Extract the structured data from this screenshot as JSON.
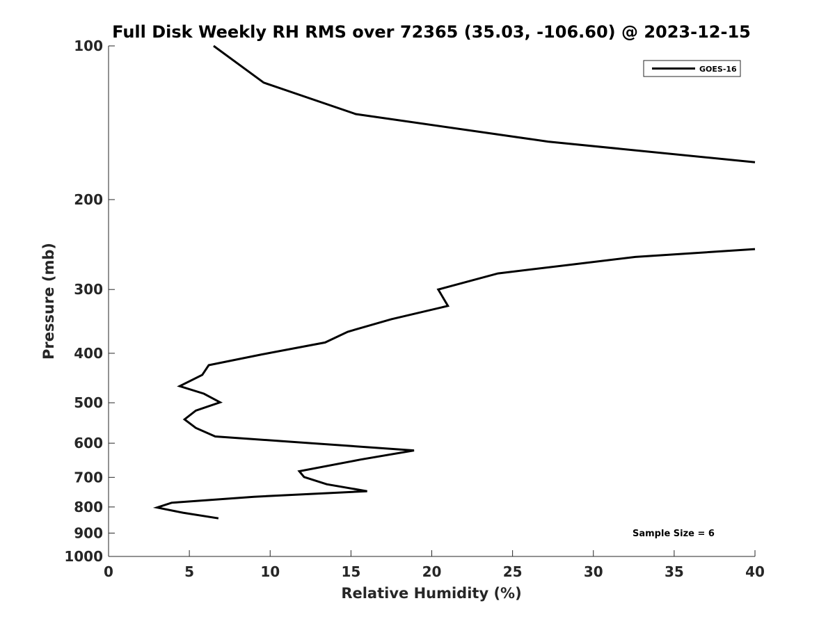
{
  "chart_data": {
    "type": "line",
    "title": "Full Disk Weekly RH RMS over 72365 (35.03, -106.60) @ 2023-12-15",
    "xlabel": "Relative Humidity (%)",
    "ylabel": "Pressure (mb)",
    "xlim": [
      0,
      40
    ],
    "ylim": [
      100,
      1000
    ],
    "yscale": "log",
    "y_reversed": true,
    "grid": false,
    "legend_position": "top-right",
    "x_ticks": [
      0,
      5,
      10,
      15,
      20,
      25,
      30,
      35,
      40
    ],
    "y_ticks": [
      100,
      200,
      300,
      400,
      500,
      600,
      700,
      800,
      900,
      1000
    ],
    "line_color": "#000000",
    "series": [
      {
        "name": "GOES-16",
        "segments": [
          {
            "x": [
              6.5,
              9.6,
              15.3,
              27.2,
              40.0
            ],
            "y": [
              100,
              118,
              136,
              154,
              169
            ]
          },
          {
            "x": [
              40.0,
              32.6,
              24.1,
              20.4,
              21.0,
              17.5,
              14.8,
              13.4,
              9.5,
              6.2,
              5.8,
              4.4,
              5.9,
              6.9,
              5.4,
              4.7,
              5.4,
              6.6,
              18.9,
              15.6,
              11.8,
              12.1,
              13.5,
              16.0,
              9.0,
              3.9,
              3.0,
              4.6,
              6.8
            ],
            "y": [
              250,
              259,
              279,
              300,
              323,
              343,
              363,
              381,
              402,
              422,
              441,
              464,
              480,
              499,
              518,
              539,
              560,
              582,
              620,
              646,
              681,
              699,
              722,
              745,
              764,
              785,
              802,
              821,
              842
            ]
          }
        ]
      }
    ],
    "legend": [
      "GOES-16"
    ],
    "annotation": "Sample Size = 6"
  }
}
